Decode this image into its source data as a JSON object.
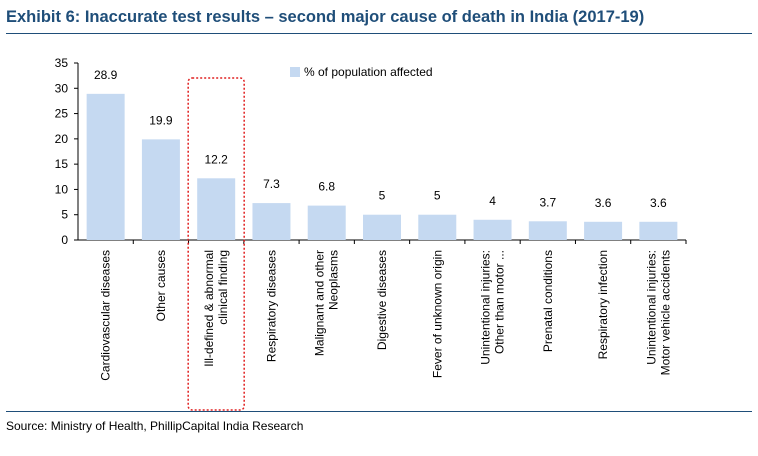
{
  "header": {
    "title": "Exhibit 6:  Inaccurate test results – second major cause of death in India (2017-19)"
  },
  "footer": {
    "source": "Source: Ministry of Health, PhillipCapital India Research"
  },
  "chart_data": {
    "type": "bar",
    "title": "Exhibit 6:  Inaccurate test results – second major cause of death in India (2017-19)",
    "categories": [
      [
        "Cardiovascular diseases"
      ],
      [
        "Other causes"
      ],
      [
        "Ill-defined & abnormal",
        "clinical finding"
      ],
      [
        "Respiratory diseases"
      ],
      [
        "Malignant and other",
        "Neoplasms"
      ],
      [
        "Digestive diseases"
      ],
      [
        "Fever of unknown origin"
      ],
      [
        "Unintentional injuries:",
        "Other than motor ..."
      ],
      [
        "Prenatal conditions"
      ],
      [
        "Respiratory infection"
      ],
      [
        "Unintentional injuries:",
        "Motor vehicle accidents"
      ]
    ],
    "series": [
      {
        "name": "% of population affected",
        "values": [
          28.9,
          19.9,
          12.2,
          7.3,
          6.8,
          5,
          5,
          4,
          3.7,
          3.6,
          3.6
        ],
        "labels": [
          "28.9",
          "19.9",
          "12.2",
          "7.3",
          "6.8",
          "5",
          "5",
          "4",
          "3.7",
          "3.6",
          "3.6"
        ]
      }
    ],
    "ylim": [
      0,
      35
    ],
    "yticks": [
      0,
      5,
      10,
      15,
      20,
      25,
      30,
      35
    ],
    "legend": "top",
    "highlight_index": 2,
    "grid": false,
    "colors": {
      "bar": "#c5d9f1",
      "highlight_box": "#e02020",
      "title": "#1f4e79",
      "axis": "#000000"
    }
  }
}
